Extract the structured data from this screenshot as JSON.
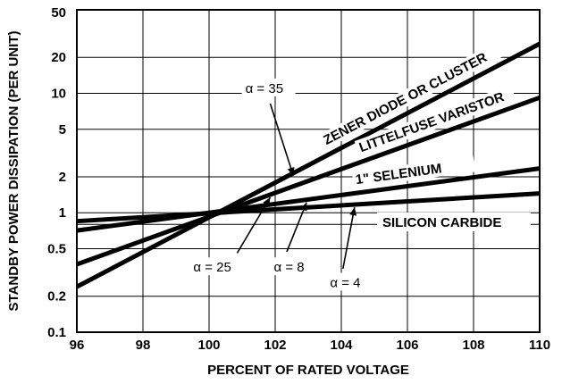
{
  "chart_data": {
    "type": "line",
    "x_axis": {
      "label": "PERCENT OF RATED VOLTAGE",
      "range": [
        96,
        110
      ],
      "ticks": [
        96,
        98,
        100,
        102,
        104,
        106,
        108,
        110
      ],
      "tick_labels": [
        "96",
        "98",
        "100",
        "102",
        "104",
        "106",
        "108",
        "110"
      ]
    },
    "y_axis": {
      "label": "STANDBY POWER DISSIPATION (PER UNIT)",
      "scale": "log",
      "range": [
        0.1,
        50
      ],
      "ticks": [
        0.1,
        0.2,
        0.5,
        1,
        2,
        5,
        10,
        20,
        50
      ],
      "tick_labels": [
        "0.1",
        "0.2",
        "0.5",
        "1",
        "2",
        "5",
        "10",
        "20",
        "50"
      ],
      "extra_gridlines": [
        0.8
      ]
    },
    "grid": true,
    "series": [
      {
        "name": "ZENER DIODE OR CLUSTER",
        "alpha": 35,
        "x": [
          96,
          110
        ],
        "y": [
          0.24,
          26
        ]
      },
      {
        "name": "LITTELFUSE VARISTOR",
        "alpha": 25,
        "x": [
          96,
          110
        ],
        "y": [
          0.37,
          9.2
        ]
      },
      {
        "name": "1\" SELENIUM",
        "alpha": 8,
        "x": [
          96,
          110
        ],
        "y": [
          0.71,
          2.35
        ]
      },
      {
        "name": "SILICON CARBIDE",
        "alpha": 4,
        "x": [
          96,
          110
        ],
        "y": [
          0.85,
          1.45
        ]
      }
    ],
    "annotations": [
      {
        "text": "α = 35",
        "x": 101.8,
        "y": 11
      },
      {
        "text": "α = 25",
        "x": 100.2,
        "y": 0.35
      },
      {
        "text": "α = 8",
        "x": 102.5,
        "y": 0.35
      },
      {
        "text": "α = 4",
        "x": 104.2,
        "y": 0.26
      }
    ]
  }
}
